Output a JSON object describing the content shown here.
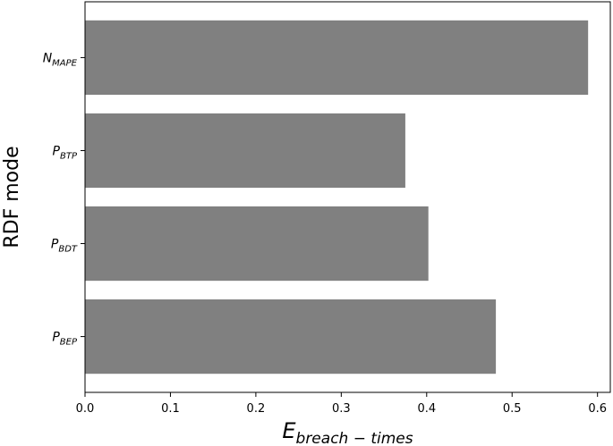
{
  "chart_data": {
    "type": "bar",
    "orientation": "horizontal",
    "categories": [
      {
        "main": "N",
        "sub": "MAPE"
      },
      {
        "main": "P",
        "sub": "BTP"
      },
      {
        "main": "P",
        "sub": "BDT"
      },
      {
        "main": "P",
        "sub": "BEP"
      }
    ],
    "values": [
      0.589,
      0.375,
      0.402,
      0.481
    ],
    "xlim": [
      0.0,
      0.615
    ],
    "xticks": [
      "0.0",
      "0.1",
      "0.2",
      "0.3",
      "0.4",
      "0.5",
      "0.6"
    ],
    "ylabel": "RDF mode",
    "xlabel": {
      "main": "E",
      "sub": "breach − times"
    },
    "bar_color": "#808080",
    "grid": false
  }
}
